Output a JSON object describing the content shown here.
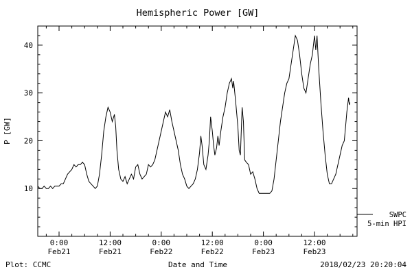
{
  "title": "Hemispheric Power [GW]",
  "footer": {
    "left": "Plot: CCMC",
    "right": "2018/02/23 20:20:04"
  },
  "legend": {
    "source": "SWPC",
    "series": "5-min HPI"
  },
  "colors": {
    "line": "#000000",
    "background": "#ffffff",
    "axis": "#000000"
  },
  "chart_data": {
    "type": "line",
    "title": "Hemispheric Power [GW]",
    "xlabel": "Date and Time",
    "ylabel": "P [GW]",
    "ylim": [
      0,
      44
    ],
    "xlim_hours": [
      -5,
      70
    ],
    "grid": false,
    "legend_position": "right-outside-bottom",
    "y_ticks": [
      10,
      20,
      30,
      40
    ],
    "y_minor_step": 2,
    "x_minor_hours": 3,
    "x_ticks": [
      {
        "hour": 0,
        "time": "0:00",
        "date": "Feb21"
      },
      {
        "hour": 12,
        "time": "12:00",
        "date": "Feb21"
      },
      {
        "hour": 24,
        "time": "0:00",
        "date": "Feb22"
      },
      {
        "hour": 36,
        "time": "12:00",
        "date": "Feb22"
      },
      {
        "hour": 48,
        "time": "0:00",
        "date": "Feb23"
      },
      {
        "hour": 60,
        "time": "12:00",
        "date": "Feb23"
      }
    ],
    "series": [
      {
        "name": "SWPC 5-min HPI",
        "points": [
          [
            -5,
            10.5
          ],
          [
            -4.5,
            10
          ],
          [
            -4,
            10
          ],
          [
            -3.5,
            10.5
          ],
          [
            -3,
            10
          ],
          [
            -2.5,
            10
          ],
          [
            -2,
            10.5
          ],
          [
            -1.5,
            10
          ],
          [
            -1,
            10.5
          ],
          [
            -0.5,
            10.5
          ],
          [
            0,
            10.5
          ],
          [
            0.5,
            11
          ],
          [
            1,
            11
          ],
          [
            1.5,
            12
          ],
          [
            2,
            13
          ],
          [
            2.5,
            13.5
          ],
          [
            3,
            14
          ],
          [
            3.5,
            15
          ],
          [
            4,
            14.5
          ],
          [
            4.5,
            15
          ],
          [
            5,
            15
          ],
          [
            5.5,
            15.5
          ],
          [
            6,
            15
          ],
          [
            6.5,
            13
          ],
          [
            7,
            11.5
          ],
          [
            7.5,
            11
          ],
          [
            8,
            10.5
          ],
          [
            8.5,
            10
          ],
          [
            9,
            10.5
          ],
          [
            9.5,
            13
          ],
          [
            10,
            17
          ],
          [
            10.5,
            22
          ],
          [
            11,
            25
          ],
          [
            11.5,
            27
          ],
          [
            12,
            26
          ],
          [
            12.5,
            24
          ],
          [
            13,
            25.5
          ],
          [
            13.3,
            23
          ],
          [
            13.6,
            18
          ],
          [
            14,
            14
          ],
          [
            14.5,
            12
          ],
          [
            15,
            11.5
          ],
          [
            15.5,
            12.5
          ],
          [
            16,
            11
          ],
          [
            16.5,
            12
          ],
          [
            17,
            13
          ],
          [
            17.5,
            12
          ],
          [
            18,
            14.5
          ],
          [
            18.5,
            15
          ],
          [
            19,
            13
          ],
          [
            19.5,
            12
          ],
          [
            20,
            12.5
          ],
          [
            20.5,
            13
          ],
          [
            21,
            15
          ],
          [
            21.5,
            14.5
          ],
          [
            22,
            15
          ],
          [
            22.5,
            16
          ],
          [
            23,
            18
          ],
          [
            23.5,
            20
          ],
          [
            24,
            22
          ],
          [
            24.5,
            24
          ],
          [
            25,
            26
          ],
          [
            25.5,
            25
          ],
          [
            26,
            26.5
          ],
          [
            26.5,
            24
          ],
          [
            27,
            22
          ],
          [
            27.5,
            20
          ],
          [
            28,
            18
          ],
          [
            28.5,
            15
          ],
          [
            29,
            13
          ],
          [
            29.5,
            12
          ],
          [
            30,
            10.5
          ],
          [
            30.5,
            10
          ],
          [
            31,
            10.5
          ],
          [
            31.5,
            11
          ],
          [
            32,
            12
          ],
          [
            32.5,
            14
          ],
          [
            33,
            17.5
          ],
          [
            33.3,
            21
          ],
          [
            33.6,
            19
          ],
          [
            34,
            15
          ],
          [
            34.5,
            14
          ],
          [
            35,
            17
          ],
          [
            35.3,
            20
          ],
          [
            35.6,
            25
          ],
          [
            36,
            22
          ],
          [
            36.3,
            19
          ],
          [
            36.6,
            17
          ],
          [
            37,
            18.5
          ],
          [
            37.3,
            21
          ],
          [
            37.6,
            19
          ],
          [
            38,
            22
          ],
          [
            38.5,
            25
          ],
          [
            39,
            27
          ],
          [
            39.5,
            30
          ],
          [
            40,
            32
          ],
          [
            40.5,
            33
          ],
          [
            40.8,
            31
          ],
          [
            41,
            32.5
          ],
          [
            41.5,
            28
          ],
          [
            42,
            23
          ],
          [
            42.3,
            18
          ],
          [
            42.6,
            17
          ],
          [
            43,
            27
          ],
          [
            43.3,
            24
          ],
          [
            43.6,
            16
          ],
          [
            44,
            15.5
          ],
          [
            44.5,
            15
          ],
          [
            45,
            13
          ],
          [
            45.5,
            13.5
          ],
          [
            46,
            12
          ],
          [
            46.5,
            10
          ],
          [
            47,
            9
          ],
          [
            47.5,
            9
          ],
          [
            48,
            9
          ],
          [
            48.5,
            9
          ],
          [
            49,
            9
          ],
          [
            49.5,
            9
          ],
          [
            50,
            9.5
          ],
          [
            50.5,
            12
          ],
          [
            51,
            16
          ],
          [
            51.5,
            20
          ],
          [
            52,
            24
          ],
          [
            52.5,
            27
          ],
          [
            53,
            30
          ],
          [
            53.5,
            32
          ],
          [
            54,
            33
          ],
          [
            54.5,
            36
          ],
          [
            55,
            39
          ],
          [
            55.5,
            42
          ],
          [
            56,
            41
          ],
          [
            56.5,
            38
          ],
          [
            57,
            34
          ],
          [
            57.5,
            31
          ],
          [
            58,
            30
          ],
          [
            58.5,
            33
          ],
          [
            59,
            36
          ],
          [
            59.5,
            38
          ],
          [
            60,
            42
          ],
          [
            60.3,
            39
          ],
          [
            60.6,
            42
          ],
          [
            61,
            35
          ],
          [
            61.5,
            28
          ],
          [
            62,
            22
          ],
          [
            62.5,
            17
          ],
          [
            63,
            13
          ],
          [
            63.5,
            11
          ],
          [
            64,
            11
          ],
          [
            64.5,
            12
          ],
          [
            65,
            13
          ],
          [
            65.5,
            15
          ],
          [
            66,
            17
          ],
          [
            66.5,
            19
          ],
          [
            67,
            20
          ],
          [
            67.3,
            23
          ],
          [
            67.6,
            26
          ],
          [
            68,
            29
          ],
          [
            68.2,
            27.5
          ],
          [
            68.33,
            28
          ]
        ]
      }
    ]
  }
}
